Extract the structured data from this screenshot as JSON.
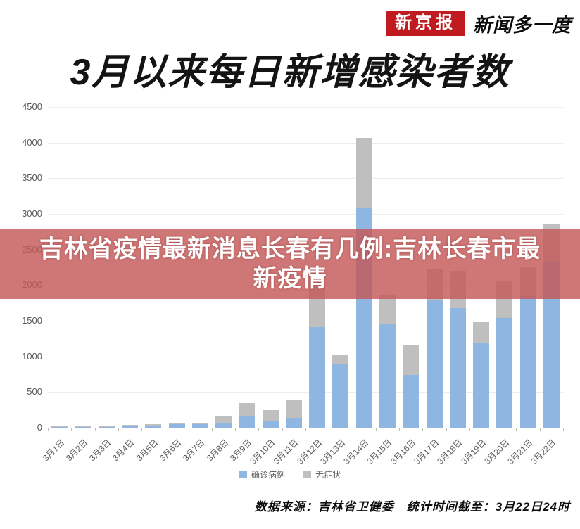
{
  "header": {
    "brand_badge": "新京报",
    "brand_suffix": "新闻多一度"
  },
  "title": "3月以来每日新增感染者数",
  "overlay": {
    "line1": "吉林省疫情最新消息长春有几例:吉林长春市最",
    "line2": "新疫情"
  },
  "footer": {
    "text": "数据来源：吉林省卫健委　统计时间截至：3月22日24时"
  },
  "colors": {
    "confirmed_blue": "#8eb6e0",
    "asymptomatic_gray": "#bfbfbf",
    "overlay_red": "rgba(196,88,88,0.82)",
    "brand_red": "#c01b20"
  },
  "chart_data": {
    "type": "bar",
    "stacked": true,
    "title": "3月以来每日新增感染者数",
    "categories": [
      "3月1日",
      "3月2日",
      "3月3日",
      "3月4日",
      "3月5日",
      "3月6日",
      "3月7日",
      "3月8日",
      "3月9日",
      "3月10日",
      "3月11日",
      "3月12日",
      "3月13日",
      "3月14日",
      "3月15日",
      "3月16日",
      "3月17日",
      "3月18日",
      "3月19日",
      "3月20日",
      "3月21日",
      "3月22日"
    ],
    "series": [
      {
        "name": "确诊病例",
        "color": "#8eb6e0",
        "values": [
          3,
          2,
          4,
          26,
          17,
          45,
          54,
          66,
          165,
          98,
          134,
          1412,
          895,
          3076,
          1456,
          742,
          1800,
          1674,
          1180,
          1542,
          1850,
          2320
        ]
      },
      {
        "name": "无症状",
        "color": "#bfbfbf",
        "values": [
          2,
          3,
          4,
          5,
          29,
          12,
          20,
          96,
          179,
          145,
          261,
          744,
          131,
          991,
          397,
          418,
          420,
          524,
          300,
          524,
          400,
          528
        ]
      }
    ],
    "xlabel": "",
    "ylabel": "",
    "ylim": [
      0,
      4500
    ],
    "ytick_interval": 500,
    "grid": true,
    "legend_position": "bottom"
  }
}
